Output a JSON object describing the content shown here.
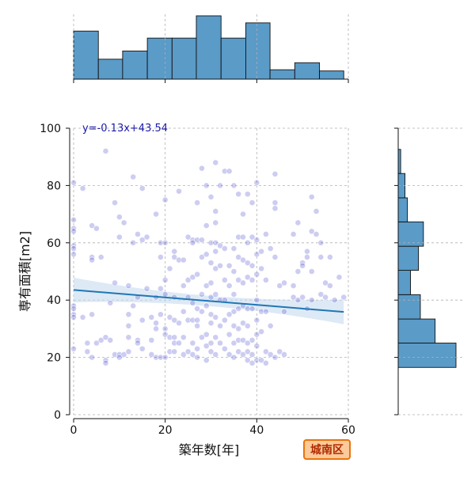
{
  "chart_data": {
    "type": "scatter",
    "xlabel": "築年数[年]",
    "ylabel": "専有面積[m2]",
    "xlim": [
      0,
      60
    ],
    "ylim": [
      0,
      100
    ],
    "x_ticks": [
      0,
      20,
      40,
      60
    ],
    "y_ticks": [
      0,
      20,
      40,
      60,
      80,
      100
    ],
    "grid": true,
    "regression": {
      "label": "y=-0.13x+43.54",
      "slope": -0.13,
      "intercept": 43.54,
      "x_range": [
        0,
        59
      ],
      "color": "#1f77b4",
      "ci_color": "#c6dbef"
    },
    "point_color": "#4b4bd0",
    "hist_color": "#5a9bc8",
    "x_histogram": {
      "bin_edges": [
        0,
        5.4,
        10.7,
        16.1,
        21.5,
        26.8,
        32.2,
        37.6,
        42.9,
        48.3,
        53.7,
        59
      ],
      "counts": [
        41,
        17,
        24,
        35,
        35,
        54,
        35,
        48,
        8,
        14,
        7
      ]
    },
    "y_histogram": {
      "bin_edges": [
        16.5,
        25,
        33.4,
        41.9,
        50.4,
        58.8,
        67.3,
        75.7,
        84.2,
        92.6
      ],
      "counts": [
        94,
        60,
        36,
        20,
        33,
        41,
        15,
        11,
        4
      ]
    },
    "points": [
      [
        0,
        81
      ],
      [
        0,
        68
      ],
      [
        0,
        65
      ],
      [
        0,
        64
      ],
      [
        0,
        59
      ],
      [
        0,
        58
      ],
      [
        0,
        56
      ],
      [
        0,
        38
      ],
      [
        0,
        37
      ],
      [
        0,
        35
      ],
      [
        0,
        34
      ],
      [
        0,
        23
      ],
      [
        2,
        79
      ],
      [
        2,
        34
      ],
      [
        3,
        25
      ],
      [
        3,
        22
      ],
      [
        4,
        20
      ],
      [
        4,
        35
      ],
      [
        4,
        55
      ],
      [
        4,
        54
      ],
      [
        4,
        66
      ],
      [
        5,
        65
      ],
      [
        5,
        25
      ],
      [
        6,
        26
      ],
      [
        6,
        55
      ],
      [
        7,
        92
      ],
      [
        7,
        19
      ],
      [
        7,
        18
      ],
      [
        7,
        27
      ],
      [
        8,
        39
      ],
      [
        8,
        26
      ],
      [
        9,
        74
      ],
      [
        9,
        46
      ],
      [
        9,
        21
      ],
      [
        10,
        69
      ],
      [
        10,
        62
      ],
      [
        10,
        21
      ],
      [
        10,
        20
      ],
      [
        11,
        67
      ],
      [
        11,
        21
      ],
      [
        12,
        45
      ],
      [
        12,
        35
      ],
      [
        12,
        31
      ],
      [
        12,
        27
      ],
      [
        12,
        22
      ],
      [
        13,
        83
      ],
      [
        13,
        60
      ],
      [
        13,
        38
      ],
      [
        14,
        63
      ],
      [
        14,
        41
      ],
      [
        14,
        26
      ],
      [
        14,
        25
      ],
      [
        15,
        79
      ],
      [
        15,
        61
      ],
      [
        15,
        33
      ],
      [
        15,
        23
      ],
      [
        16,
        62
      ],
      [
        16,
        44
      ],
      [
        17,
        34
      ],
      [
        17,
        26
      ],
      [
        17,
        21
      ],
      [
        18,
        70
      ],
      [
        18,
        41
      ],
      [
        18,
        32
      ],
      [
        18,
        30
      ],
      [
        18,
        20
      ],
      [
        19,
        60
      ],
      [
        19,
        55
      ],
      [
        19,
        44
      ],
      [
        19,
        35
      ],
      [
        19,
        20
      ],
      [
        20,
        75
      ],
      [
        20,
        60
      ],
      [
        20,
        47
      ],
      [
        20,
        42
      ],
      [
        20,
        30
      ],
      [
        20,
        28
      ],
      [
        20,
        20
      ],
      [
        21,
        51
      ],
      [
        21,
        34
      ],
      [
        21,
        27
      ],
      [
        21,
        22
      ],
      [
        22,
        57
      ],
      [
        22,
        55
      ],
      [
        22,
        41
      ],
      [
        22,
        33
      ],
      [
        22,
        27
      ],
      [
        22,
        25
      ],
      [
        22,
        22
      ],
      [
        23,
        78
      ],
      [
        23,
        54
      ],
      [
        23,
        32
      ],
      [
        23,
        25
      ],
      [
        24,
        54
      ],
      [
        24,
        45
      ],
      [
        24,
        36
      ],
      [
        24,
        27
      ],
      [
        24,
        21
      ],
      [
        25,
        62
      ],
      [
        25,
        47
      ],
      [
        25,
        41
      ],
      [
        25,
        33
      ],
      [
        25,
        22
      ],
      [
        26,
        61
      ],
      [
        26,
        60
      ],
      [
        26,
        48
      ],
      [
        26,
        39
      ],
      [
        26,
        33
      ],
      [
        26,
        25
      ],
      [
        26,
        21
      ],
      [
        27,
        74
      ],
      [
        27,
        61
      ],
      [
        27,
        49
      ],
      [
        27,
        37
      ],
      [
        27,
        33
      ],
      [
        27,
        31
      ],
      [
        27,
        23
      ],
      [
        27,
        20
      ],
      [
        28,
        86
      ],
      [
        28,
        61
      ],
      [
        28,
        55
      ],
      [
        28,
        42
      ],
      [
        28,
        36
      ],
      [
        28,
        27
      ],
      [
        29,
        80
      ],
      [
        29,
        66
      ],
      [
        29,
        56
      ],
      [
        29,
        45
      ],
      [
        29,
        38
      ],
      [
        29,
        28
      ],
      [
        29,
        24
      ],
      [
        29,
        19
      ],
      [
        30,
        76
      ],
      [
        30,
        60
      ],
      [
        30,
        53
      ],
      [
        30,
        46
      ],
      [
        30,
        41
      ],
      [
        30,
        35
      ],
      [
        30,
        32
      ],
      [
        30,
        25
      ],
      [
        30,
        22
      ],
      [
        31,
        88
      ],
      [
        31,
        71
      ],
      [
        31,
        67
      ],
      [
        31,
        60
      ],
      [
        31,
        57
      ],
      [
        31,
        51
      ],
      [
        31,
        42
      ],
      [
        31,
        34
      ],
      [
        31,
        27
      ],
      [
        31,
        21
      ],
      [
        32,
        80
      ],
      [
        32,
        59
      ],
      [
        32,
        52
      ],
      [
        32,
        40
      ],
      [
        32,
        31
      ],
      [
        32,
        25
      ],
      [
        33,
        85
      ],
      [
        33,
        58
      ],
      [
        33,
        47
      ],
      [
        33,
        40
      ],
      [
        33,
        33
      ],
      [
        33,
        23
      ],
      [
        34,
        85
      ],
      [
        34,
        52
      ],
      [
        34,
        45
      ],
      [
        34,
        35
      ],
      [
        34,
        28
      ],
      [
        34,
        21
      ],
      [
        35,
        80
      ],
      [
        35,
        58
      ],
      [
        35,
        50
      ],
      [
        35,
        42
      ],
      [
        35,
        36
      ],
      [
        35,
        31
      ],
      [
        35,
        25
      ],
      [
        35,
        20
      ],
      [
        36,
        77
      ],
      [
        36,
        62
      ],
      [
        36,
        55
      ],
      [
        36,
        47
      ],
      [
        36,
        37
      ],
      [
        36,
        30
      ],
      [
        36,
        26
      ],
      [
        36,
        22
      ],
      [
        37,
        70
      ],
      [
        37,
        62
      ],
      [
        37,
        54
      ],
      [
        37,
        46
      ],
      [
        37,
        38
      ],
      [
        37,
        32
      ],
      [
        37,
        26
      ],
      [
        37,
        21
      ],
      [
        38,
        77
      ],
      [
        38,
        60
      ],
      [
        38,
        53
      ],
      [
        38,
        48
      ],
      [
        38,
        37
      ],
      [
        38,
        31
      ],
      [
        38,
        25
      ],
      [
        38,
        22
      ],
      [
        38,
        19
      ],
      [
        39,
        74
      ],
      [
        39,
        62
      ],
      [
        39,
        52
      ],
      [
        39,
        47
      ],
      [
        39,
        37
      ],
      [
        39,
        26
      ],
      [
        39,
        21
      ],
      [
        39,
        18
      ],
      [
        40,
        81
      ],
      [
        40,
        61
      ],
      [
        40,
        56
      ],
      [
        40,
        49
      ],
      [
        40,
        40
      ],
      [
        40,
        33
      ],
      [
        40,
        28
      ],
      [
        40,
        24
      ],
      [
        40,
        19
      ],
      [
        41,
        57
      ],
      [
        41,
        51
      ],
      [
        41,
        36
      ],
      [
        41,
        29
      ],
      [
        41,
        19
      ],
      [
        42,
        63
      ],
      [
        42,
        47
      ],
      [
        42,
        36
      ],
      [
        42,
        22
      ],
      [
        42,
        18
      ],
      [
        43,
        58
      ],
      [
        43,
        31
      ],
      [
        43,
        21
      ],
      [
        44,
        84
      ],
      [
        44,
        74
      ],
      [
        44,
        72
      ],
      [
        44,
        55
      ],
      [
        44,
        20
      ],
      [
        45,
        45
      ],
      [
        45,
        22
      ],
      [
        46,
        46
      ],
      [
        46,
        36
      ],
      [
        46,
        21
      ],
      [
        48,
        63
      ],
      [
        48,
        45
      ],
      [
        48,
        41
      ],
      [
        49,
        67
      ],
      [
        49,
        50
      ],
      [
        49,
        40
      ],
      [
        50,
        53
      ],
      [
        50,
        52
      ],
      [
        50,
        41
      ],
      [
        51,
        57
      ],
      [
        51,
        55
      ],
      [
        51,
        37
      ],
      [
        52,
        76
      ],
      [
        52,
        64
      ],
      [
        52,
        50
      ],
      [
        52,
        40
      ],
      [
        53,
        71
      ],
      [
        53,
        63
      ],
      [
        54,
        60
      ],
      [
        54,
        55
      ],
      [
        54,
        42
      ],
      [
        55,
        46
      ],
      [
        55,
        41
      ],
      [
        56,
        55
      ],
      [
        56,
        45
      ],
      [
        57,
        40
      ],
      [
        58,
        48
      ],
      [
        59,
        41
      ]
    ]
  },
  "region_badge": "城南区"
}
